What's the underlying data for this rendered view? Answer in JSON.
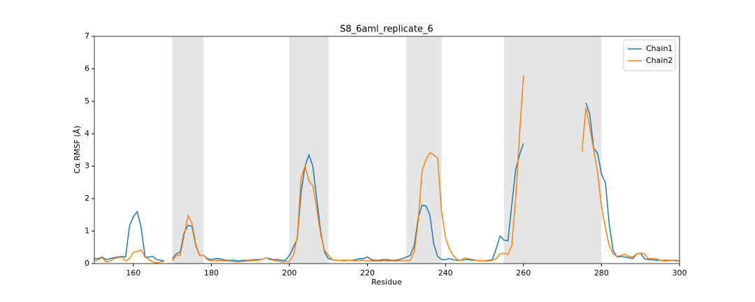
{
  "chart_data": {
    "type": "line",
    "title": "S8_6aml_replicate_6",
    "x_label": "Residue",
    "y_label": "Cα RMSF (Å)",
    "x": [
      150,
      151,
      152,
      153,
      154,
      155,
      156,
      157,
      158,
      159,
      160,
      161,
      162,
      163,
      164,
      165,
      166,
      167,
      168,
      169,
      170,
      171,
      172,
      173,
      174,
      175,
      176,
      177,
      178,
      179,
      180,
      181,
      182,
      183,
      184,
      185,
      186,
      187,
      188,
      189,
      190,
      191,
      192,
      193,
      194,
      195,
      196,
      197,
      198,
      199,
      200,
      201,
      202,
      203,
      204,
      205,
      206,
      207,
      208,
      209,
      210,
      211,
      212,
      213,
      214,
      215,
      216,
      217,
      218,
      219,
      220,
      221,
      222,
      223,
      224,
      225,
      226,
      227,
      228,
      229,
      230,
      231,
      232,
      233,
      234,
      235,
      236,
      237,
      238,
      239,
      240,
      241,
      242,
      243,
      244,
      245,
      246,
      247,
      248,
      249,
      250,
      251,
      252,
      253,
      254,
      255,
      256,
      257,
      258,
      259,
      260,
      261,
      262,
      263,
      264,
      265,
      266,
      267,
      268,
      269,
      270,
      271,
      272,
      273,
      274,
      275,
      276,
      277,
      278,
      279,
      280,
      281,
      282,
      283,
      284,
      285,
      286,
      287,
      288,
      289,
      290,
      291,
      292,
      293,
      294,
      295,
      296,
      297,
      298,
      299,
      300
    ],
    "series": [
      {
        "name": "Chain1",
        "color": "#1f77b4",
        "values": [
          0.15,
          0.15,
          0.2,
          0.12,
          0.15,
          0.18,
          0.2,
          0.22,
          0.2,
          1.15,
          1.45,
          1.6,
          1.1,
          0.2,
          0.2,
          0.22,
          0.12,
          0.1,
          0.08,
          null,
          0.15,
          0.3,
          0.35,
          0.95,
          1.18,
          1.15,
          0.55,
          0.25,
          0.25,
          0.15,
          0.12,
          0.15,
          0.15,
          0.12,
          0.1,
          0.1,
          0.1,
          0.08,
          0.1,
          0.1,
          0.1,
          0.12,
          0.12,
          0.12,
          0.18,
          0.15,
          0.12,
          0.12,
          0.1,
          0.1,
          0.25,
          0.5,
          0.75,
          2.2,
          3.0,
          3.35,
          3.0,
          2.0,
          1.0,
          0.35,
          0.15,
          0.12,
          0.1,
          0.1,
          0.1,
          0.1,
          0.1,
          0.12,
          0.15,
          0.15,
          0.2,
          0.12,
          0.1,
          0.1,
          0.12,
          0.12,
          0.1,
          0.1,
          0.12,
          0.15,
          0.2,
          0.25,
          0.55,
          1.4,
          1.8,
          1.78,
          1.5,
          0.6,
          0.22,
          0.12,
          0.12,
          0.15,
          0.12,
          0.1,
          0.1,
          0.12,
          0.12,
          0.1,
          0.1,
          0.08,
          0.08,
          0.1,
          0.12,
          0.45,
          0.85,
          0.72,
          0.7,
          1.8,
          2.9,
          3.35,
          3.7,
          null,
          null,
          null,
          null,
          null,
          null,
          null,
          null,
          null,
          null,
          null,
          null,
          null,
          null,
          null,
          4.95,
          4.6,
          3.55,
          3.4,
          2.75,
          2.5,
          1.2,
          0.4,
          0.2,
          0.22,
          0.2,
          0.18,
          0.15,
          0.3,
          0.32,
          0.15,
          0.12,
          0.12,
          0.1,
          0.1,
          0.1,
          0.1,
          0.1,
          0.1,
          0.08
        ]
      },
      {
        "name": "Chain2",
        "color": "#ff7f0e",
        "values": [
          0.08,
          0.12,
          0.18,
          0.05,
          0.08,
          0.15,
          0.18,
          0.2,
          0.08,
          0.15,
          0.35,
          0.37,
          0.42,
          0.2,
          0.12,
          0.05,
          0.02,
          0.05,
          0.08,
          null,
          0.08,
          0.25,
          0.25,
          0.85,
          1.48,
          1.25,
          0.6,
          0.25,
          0.25,
          0.12,
          0.08,
          0.1,
          0.1,
          0.08,
          0.08,
          0.08,
          0.05,
          0.05,
          0.06,
          0.08,
          0.08,
          0.1,
          0.1,
          0.12,
          0.18,
          0.12,
          0.1,
          0.08,
          0.05,
          0.05,
          0.08,
          0.25,
          0.8,
          2.65,
          3.0,
          2.55,
          2.4,
          1.7,
          0.9,
          0.4,
          0.25,
          0.12,
          0.1,
          0.1,
          0.08,
          0.1,
          0.1,
          0.08,
          0.1,
          0.1,
          0.08,
          0.08,
          0.08,
          0.08,
          0.08,
          0.08,
          0.08,
          0.08,
          0.08,
          0.08,
          0.1,
          0.1,
          0.35,
          1.3,
          2.85,
          3.2,
          3.42,
          3.35,
          3.25,
          1.6,
          0.8,
          0.45,
          0.25,
          0.12,
          0.1,
          0.18,
          0.15,
          0.12,
          0.1,
          0.08,
          0.08,
          0.08,
          0.1,
          0.15,
          0.3,
          0.32,
          0.28,
          0.55,
          2.0,
          4.0,
          5.8,
          null,
          null,
          null,
          null,
          null,
          null,
          null,
          null,
          null,
          null,
          null,
          null,
          null,
          null,
          3.45,
          4.8,
          4.2,
          3.5,
          2.8,
          1.75,
          1.1,
          0.55,
          0.3,
          0.22,
          0.25,
          0.28,
          0.22,
          0.2,
          0.3,
          0.32,
          0.3,
          0.15,
          0.15,
          0.15,
          0.1,
          0.08,
          0.08,
          0.1,
          0.08,
          0.08
        ]
      }
    ],
    "shaded_regions": [
      [
        170,
        178
      ],
      [
        200,
        210
      ],
      [
        230,
        239
      ],
      [
        255,
        280
      ]
    ],
    "shade_color": "#e5e5e5",
    "xlim": [
      150,
      300
    ],
    "xticks": [
      160,
      180,
      200,
      220,
      240,
      260,
      280,
      300
    ],
    "ylim": [
      0,
      7
    ],
    "yticks": [
      0,
      1,
      2,
      3,
      4,
      5,
      6,
      7
    ],
    "grid": false,
    "legend": "upper right"
  }
}
